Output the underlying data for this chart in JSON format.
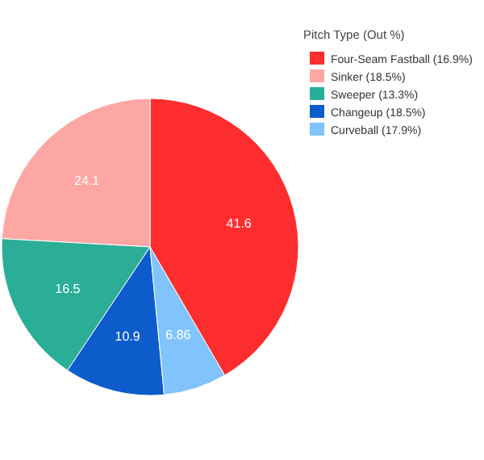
{
  "chart_data": {
    "type": "pie",
    "legend_title": "Pitch Type (Out %)",
    "categories": [
      "Four-Seam Fastball (16.9%)",
      "Sinker (18.5%)",
      "Sweeper (13.3%)",
      "Changeup (18.5%)",
      "Curveball (17.9%)"
    ],
    "values": [
      41.6,
      24.1,
      16.5,
      10.9,
      6.86
    ],
    "colors": [
      "#fe2e2e",
      "#fda7a5",
      "#2aae97",
      "#0d5ccc",
      "#80c3fd"
    ],
    "data_labels": true,
    "legend": "top right"
  }
}
